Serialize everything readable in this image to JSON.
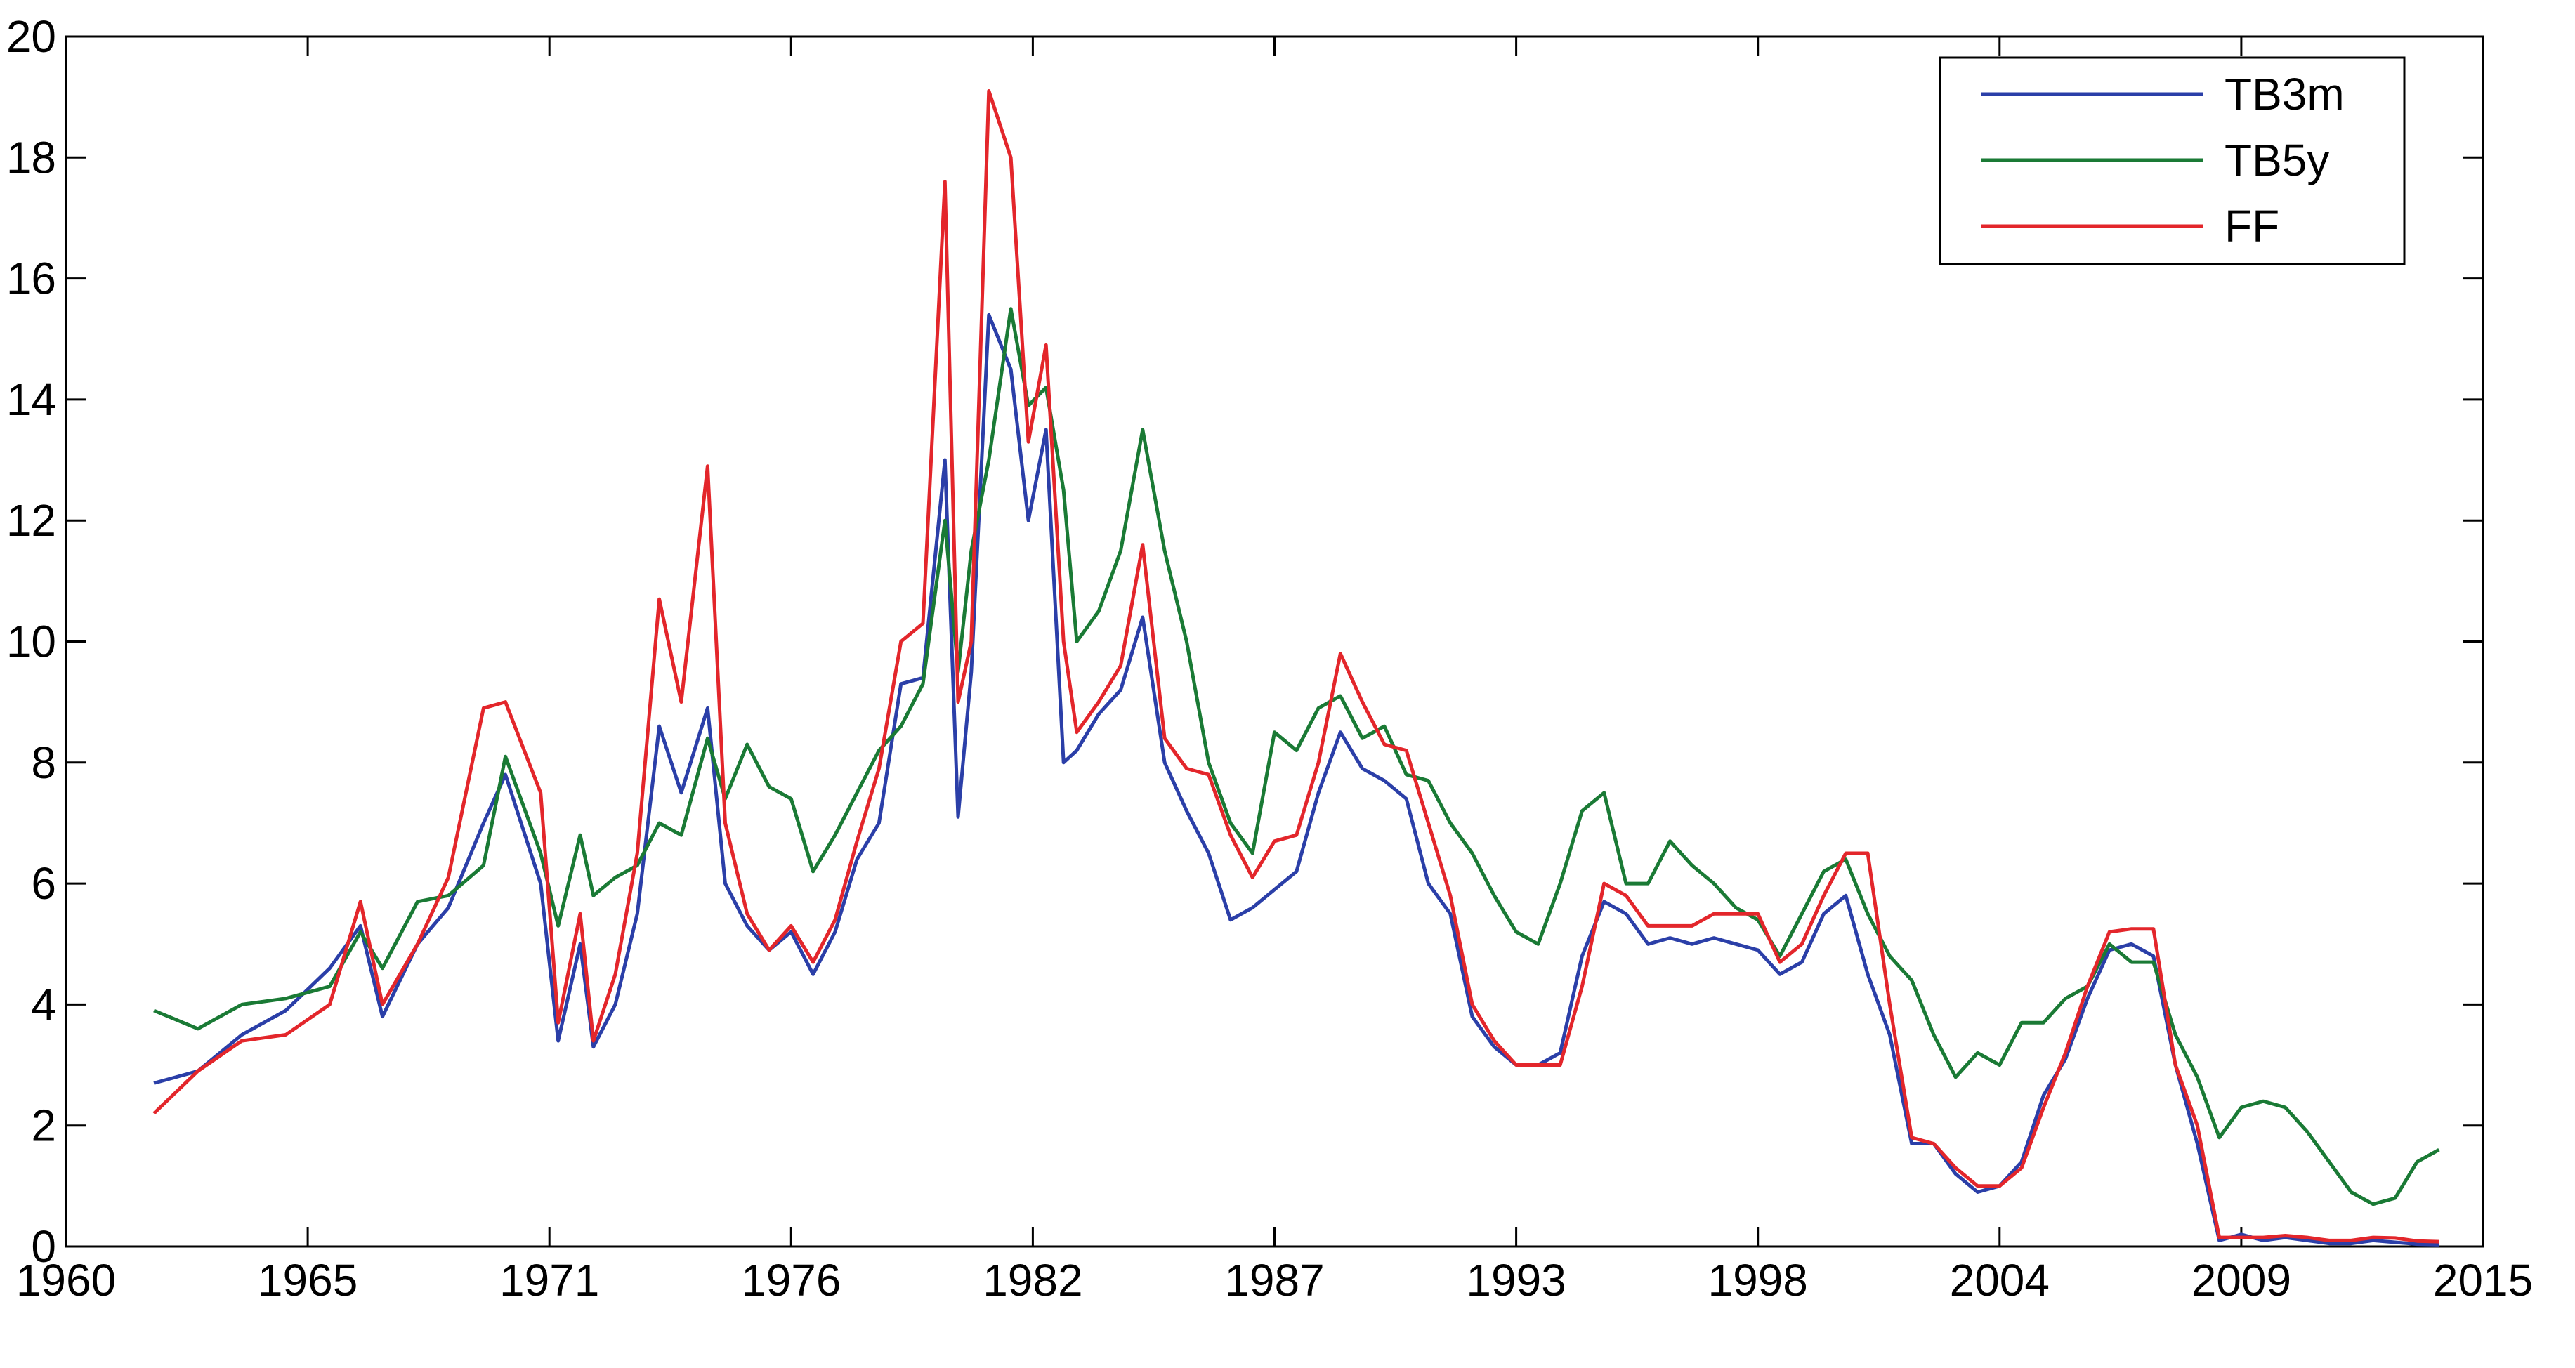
{
  "chart_data": {
    "type": "line",
    "x": [
      1962.0,
      1963.0,
      1964.0,
      1965.0,
      1966.0,
      1966.7,
      1967.2,
      1968.0,
      1968.7,
      1969.5,
      1970.0,
      1970.8,
      1971.2,
      1971.7,
      1972.0,
      1972.5,
      1973.0,
      1973.5,
      1974.0,
      1974.6,
      1975.0,
      1975.5,
      1976.0,
      1976.5,
      1977.0,
      1977.5,
      1978.0,
      1978.5,
      1979.0,
      1979.5,
      1980.0,
      1980.3,
      1980.6,
      1981.0,
      1981.5,
      1981.9,
      1982.3,
      1982.7,
      1983.0,
      1983.5,
      1984.0,
      1984.5,
      1985.0,
      1985.5,
      1986.0,
      1986.5,
      1987.0,
      1987.5,
      1988.0,
      1988.5,
      1989.0,
      1989.5,
      1990.0,
      1990.5,
      1991.0,
      1991.5,
      1992.0,
      1992.5,
      1993.0,
      1993.5,
      1994.0,
      1994.5,
      1995.0,
      1995.5,
      1996.0,
      1996.5,
      1997.0,
      1997.5,
      1998.0,
      1998.5,
      1999.0,
      1999.5,
      2000.0,
      2000.5,
      2001.0,
      2001.5,
      2002.0,
      2002.5,
      2003.0,
      2003.5,
      2004.0,
      2004.5,
      2005.0,
      2005.5,
      2006.0,
      2006.5,
      2007.0,
      2007.5,
      2008.0,
      2008.5,
      2009.0,
      2009.5,
      2010.0,
      2010.5,
      2011.0,
      2011.5,
      2012.0,
      2012.5,
      2013.0,
      2013.5,
      2014.0
    ],
    "series": [
      {
        "name": "TB3m",
        "color": "#2b3fa8",
        "values": [
          2.7,
          2.9,
          3.5,
          3.9,
          4.6,
          5.3,
          3.8,
          5.0,
          5.6,
          7.0,
          7.8,
          6.0,
          3.4,
          5.0,
          3.3,
          4.0,
          5.5,
          8.6,
          7.5,
          8.9,
          6.0,
          5.3,
          4.9,
          5.2,
          4.5,
          5.2,
          6.4,
          7.0,
          9.3,
          9.4,
          13.0,
          7.1,
          9.5,
          15.4,
          14.5,
          12.0,
          13.5,
          8.0,
          8.2,
          8.8,
          9.2,
          10.4,
          8.0,
          7.2,
          6.5,
          5.4,
          5.6,
          5.9,
          6.2,
          7.5,
          8.5,
          7.9,
          7.7,
          7.4,
          6.0,
          5.5,
          3.8,
          3.3,
          3.0,
          3.0,
          3.2,
          4.8,
          5.7,
          5.5,
          5.0,
          5.1,
          5.0,
          5.1,
          5.0,
          4.9,
          4.5,
          4.7,
          5.5,
          5.8,
          4.5,
          3.5,
          1.7,
          1.7,
          1.2,
          0.9,
          1.0,
          1.4,
          2.5,
          3.1,
          4.1,
          4.9,
          5.0,
          4.8,
          3.0,
          1.7,
          0.1,
          0.2,
          0.1,
          0.15,
          0.1,
          0.05,
          0.05,
          0.1,
          0.07,
          0.04,
          0.03
        ]
      },
      {
        "name": "TB5y",
        "color": "#1a7a35",
        "values": [
          3.9,
          3.6,
          4.0,
          4.1,
          4.3,
          5.2,
          4.6,
          5.7,
          5.8,
          6.3,
          8.1,
          6.5,
          5.3,
          6.8,
          5.8,
          6.1,
          6.3,
          7.0,
          6.8,
          8.4,
          7.4,
          8.3,
          7.6,
          7.4,
          6.2,
          6.8,
          7.5,
          8.2,
          8.6,
          9.3,
          12.0,
          9.5,
          11.5,
          13.0,
          15.5,
          13.9,
          14.2,
          12.5,
          10.0,
          10.5,
          11.5,
          13.5,
          11.5,
          10.0,
          8.0,
          7.0,
          6.5,
          8.5,
          8.2,
          8.9,
          9.1,
          8.4,
          8.6,
          7.8,
          7.7,
          7.0,
          6.5,
          5.8,
          5.2,
          5.0,
          6.0,
          7.2,
          7.5,
          6.0,
          6.0,
          6.7,
          6.3,
          6.0,
          5.6,
          5.4,
          4.8,
          5.5,
          6.2,
          6.4,
          5.5,
          4.8,
          4.4,
          3.5,
          2.8,
          3.2,
          3.0,
          3.7,
          3.7,
          4.1,
          4.3,
          5.0,
          4.7,
          4.7,
          3.5,
          2.8,
          1.8,
          2.3,
          2.4,
          2.3,
          1.9,
          1.4,
          0.9,
          0.7,
          0.8,
          1.4,
          1.6
        ]
      },
      {
        "name": "FF",
        "color": "#e3262b",
        "values": [
          2.2,
          2.9,
          3.4,
          3.5,
          4.0,
          5.7,
          4.0,
          5.0,
          6.1,
          8.9,
          9.0,
          7.5,
          3.7,
          5.5,
          3.4,
          4.5,
          6.5,
          10.7,
          9.0,
          12.9,
          7.0,
          5.5,
          4.9,
          5.3,
          4.7,
          5.4,
          6.7,
          7.9,
          10.0,
          10.3,
          17.6,
          9.0,
          10.0,
          19.1,
          18.0,
          13.3,
          14.9,
          10.0,
          8.5,
          9.0,
          9.6,
          11.6,
          8.4,
          7.9,
          7.8,
          6.8,
          6.1,
          6.7,
          6.8,
          8.0,
          9.8,
          9.0,
          8.3,
          8.2,
          7.0,
          5.8,
          4.0,
          3.4,
          3.0,
          3.0,
          3.0,
          4.3,
          6.0,
          5.8,
          5.3,
          5.3,
          5.3,
          5.5,
          5.5,
          5.5,
          4.7,
          5.0,
          5.8,
          6.5,
          6.5,
          4.0,
          1.8,
          1.7,
          1.3,
          1.0,
          1.0,
          1.3,
          2.3,
          3.2,
          4.3,
          5.2,
          5.25,
          5.25,
          3.0,
          2.0,
          0.15,
          0.15,
          0.15,
          0.18,
          0.15,
          0.1,
          0.1,
          0.15,
          0.14,
          0.09,
          0.08
        ]
      }
    ],
    "xlim": [
      1960,
      2015
    ],
    "xticks": [
      1960,
      {
        "value": 1965.5,
        "label": "1965"
      },
      1971,
      {
        "value": 1976.5,
        "label": "1976"
      },
      1982,
      {
        "value": 1987.5,
        "label": "1987"
      },
      1993,
      {
        "value": 1998.5,
        "label": "1998"
      },
      2004,
      {
        "value": 2009.5,
        "label": "2009"
      },
      2015
    ],
    "ylim": [
      0,
      20
    ],
    "yticks": [
      0,
      2,
      4,
      6,
      8,
      10,
      12,
      14,
      16,
      18,
      20
    ],
    "grid": false,
    "legend": "upper right"
  }
}
